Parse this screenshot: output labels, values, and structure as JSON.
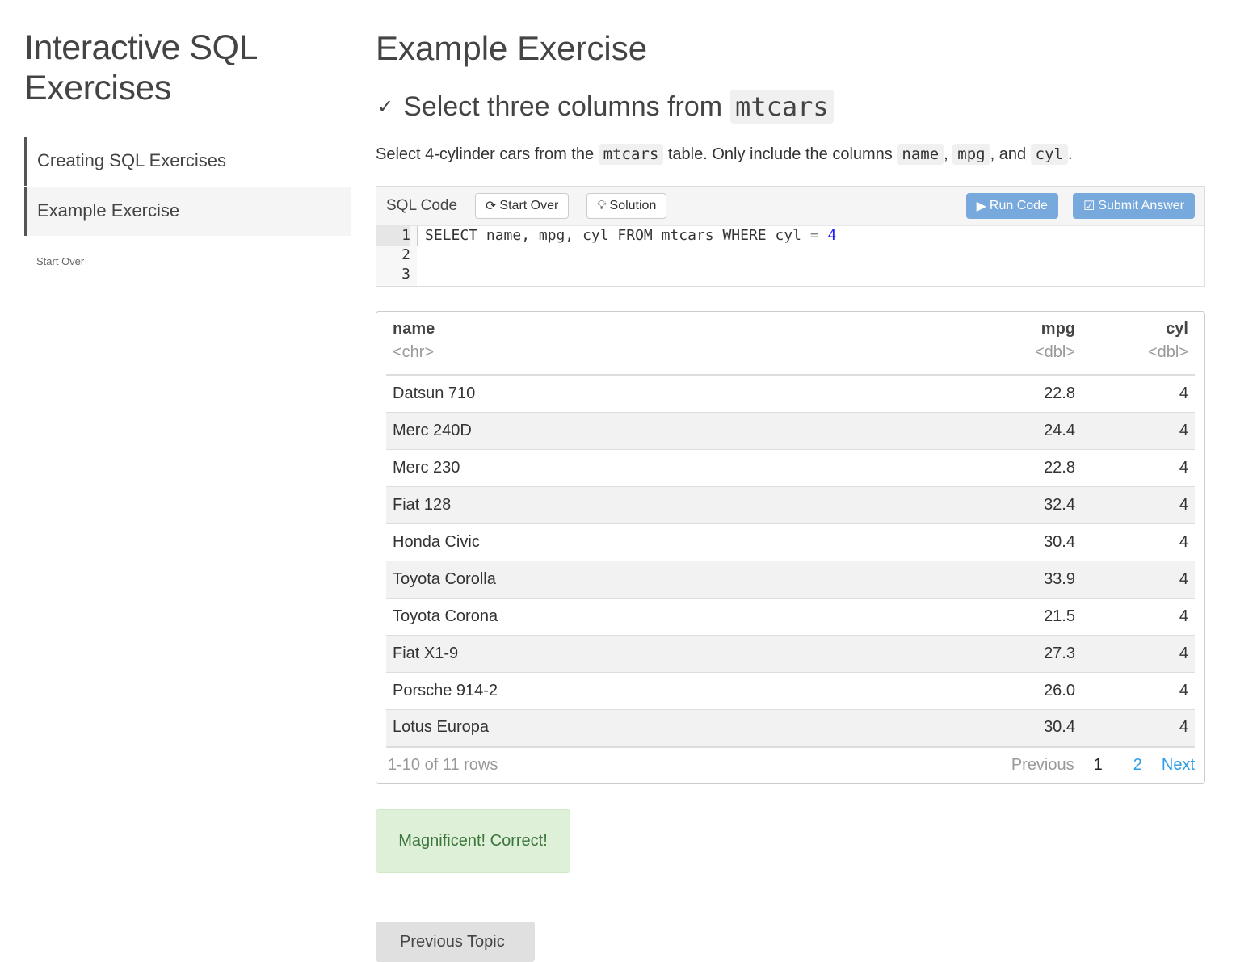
{
  "sidebar": {
    "title": "Interactive SQL Exercises",
    "items": [
      {
        "label": "Creating SQL Exercises"
      },
      {
        "label": "Example Exercise"
      }
    ],
    "start_over": "Start Over"
  },
  "main": {
    "title": "Example Exercise",
    "section": {
      "title": "Select three columns from",
      "title_code": "mtcars"
    },
    "desc": {
      "p1": "Select 4-cylinder cars from the",
      "c1": "mtcars",
      "p2": "table. Only include the columns",
      "c2": "name",
      "s1": ",",
      "c3": "mpg",
      "s2": ", and",
      "c4": "cyl",
      "s3": "."
    }
  },
  "editor": {
    "label": "SQL Code",
    "start_over": "Start Over",
    "solution": "Solution",
    "run": "Run Code",
    "submit": "Submit Answer",
    "line_numbers": [
      "1",
      "2",
      "3"
    ],
    "code": {
      "a": "SELECT name, mpg, cyl FROM mtcars WHERE cyl",
      "op": "=",
      "num": "4"
    }
  },
  "table": {
    "columns": [
      {
        "name": "name",
        "type": "<chr>"
      },
      {
        "name": "mpg",
        "type": "<dbl>"
      },
      {
        "name": "cyl",
        "type": "<dbl>"
      }
    ],
    "rows": [
      [
        "Datsun 710",
        "22.8",
        "4"
      ],
      [
        "Merc 240D",
        "24.4",
        "4"
      ],
      [
        "Merc 230",
        "22.8",
        "4"
      ],
      [
        "Fiat 128",
        "32.4",
        "4"
      ],
      [
        "Honda Civic",
        "30.4",
        "4"
      ],
      [
        "Toyota Corolla",
        "33.9",
        "4"
      ],
      [
        "Toyota Corona",
        "21.5",
        "4"
      ],
      [
        "Fiat X1-9",
        "27.3",
        "4"
      ],
      [
        "Porsche 914-2",
        "26.0",
        "4"
      ],
      [
        "Lotus Europa",
        "30.4",
        "4"
      ]
    ],
    "pager": {
      "info": "1-10 of 11 rows",
      "previous": "Previous",
      "page1": "1",
      "page2": "2",
      "next": "Next"
    }
  },
  "feedback": "Magnificent! Correct!",
  "previous_topic": "Previous Topic"
}
